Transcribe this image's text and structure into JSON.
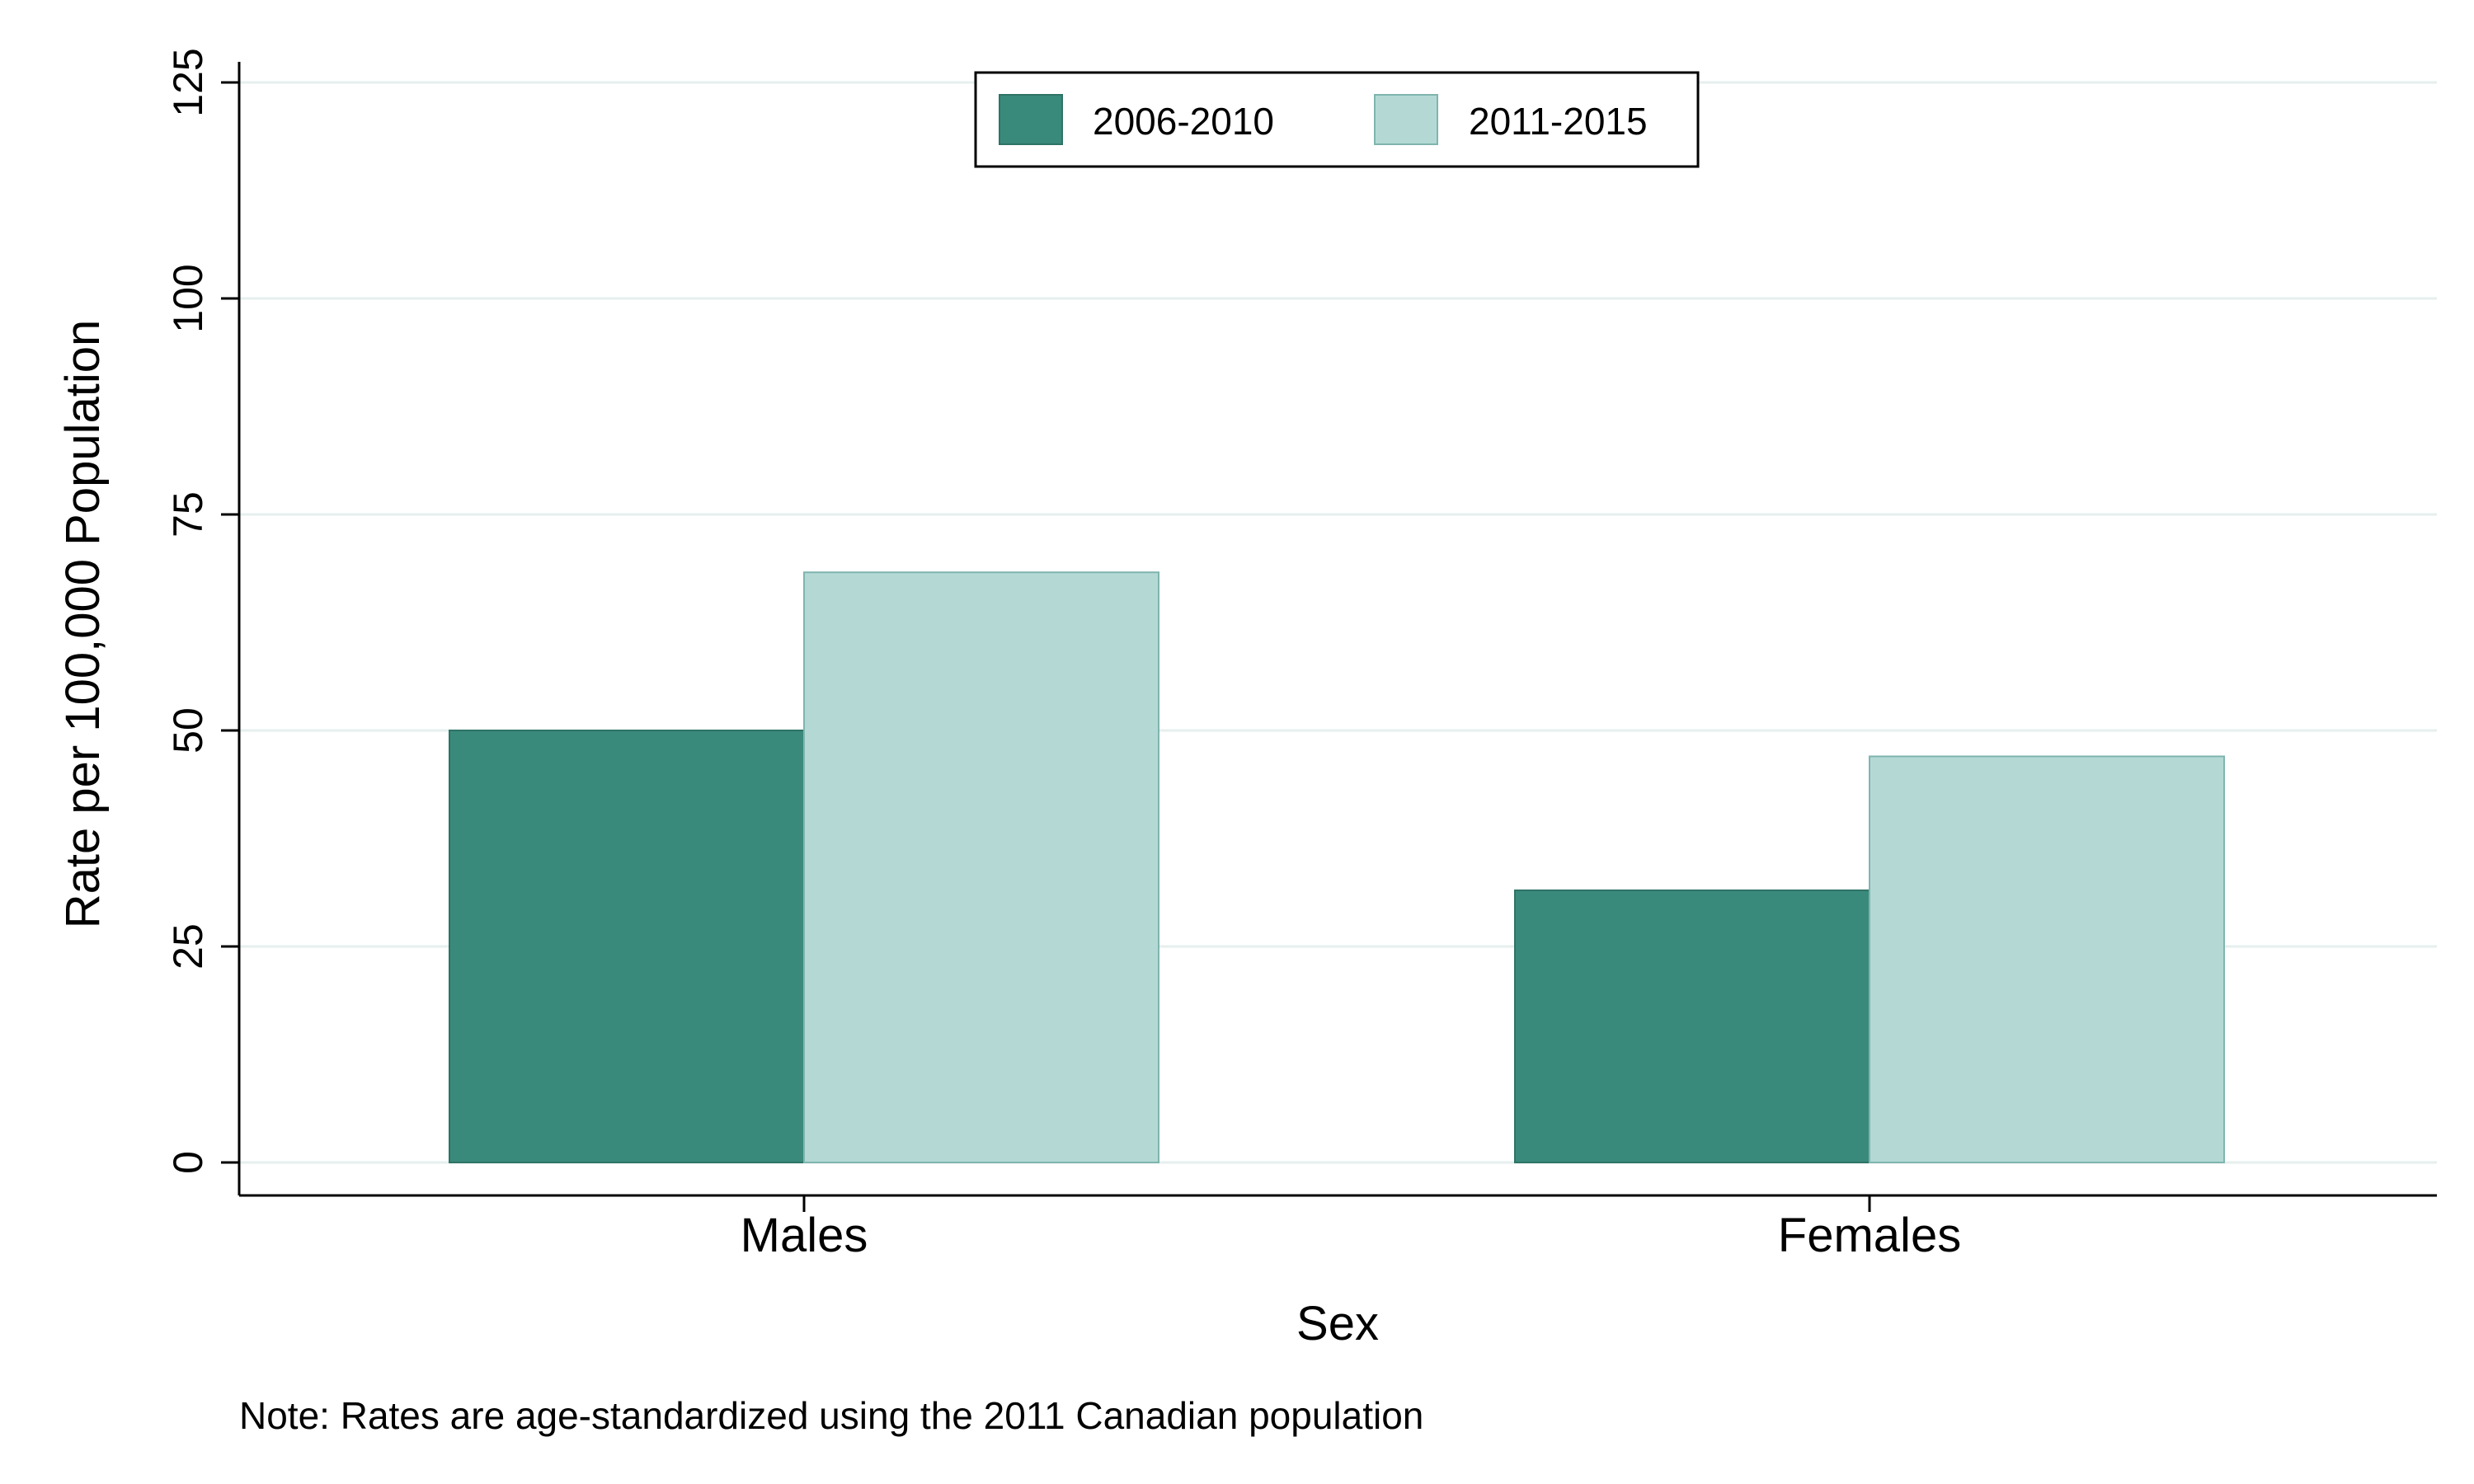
{
  "chart_data": {
    "type": "bar",
    "categories": [
      "Males",
      "Females"
    ],
    "series": [
      {
        "name": "2006-2010",
        "values": [
          50,
          31.5
        ],
        "color": "#3A8A7C"
      },
      {
        "name": "2011-2015",
        "values": [
          68.3,
          47
        ],
        "color": "#B4D9D5"
      }
    ],
    "ylim": [
      0,
      125
    ],
    "yticks": [
      0,
      25,
      50,
      75,
      100,
      125
    ],
    "ytick_labels": [
      "0",
      "25",
      "50",
      "75",
      "100",
      "125"
    ],
    "xlabel": "Sex",
    "ylabel": "Rate per 100,000 Population",
    "grid": true,
    "grid_color": "#E6EFEE",
    "legend_position": "top-center",
    "note": "Note: Rates are age-standardized using the 2011 Canadian population"
  }
}
